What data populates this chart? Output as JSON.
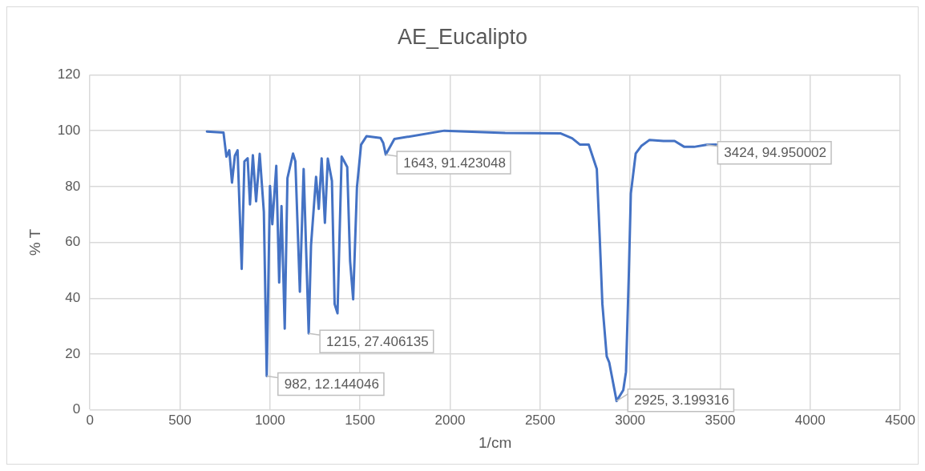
{
  "chart_data": {
    "type": "line",
    "title": "AE_Eucalipto",
    "xlabel": "1/cm",
    "ylabel": "% T",
    "xlim": [
      0,
      4500
    ],
    "xticks": [
      0,
      500,
      1000,
      1500,
      2000,
      2500,
      3000,
      3500,
      4000,
      4500
    ],
    "ylim": [
      0,
      120
    ],
    "yticks": [
      0,
      20,
      40,
      60,
      80,
      100,
      120
    ],
    "grid": true,
    "marker": "none",
    "series": [
      {
        "color": "#4472c4",
        "x": [
          650,
          742,
          758,
          774,
          789,
          805,
          820,
          843,
          858,
          876,
          889,
          905,
          923,
          943,
          966,
          982,
          1000,
          1013,
          1035,
          1051,
          1064,
          1082,
          1097,
          1128,
          1141,
          1166,
          1187,
          1215,
          1228,
          1256,
          1271,
          1287,
          1305,
          1321,
          1344,
          1359,
          1375,
          1398,
          1429,
          1445,
          1462,
          1483,
          1506,
          1536,
          1614,
          1629,
          1643,
          1691,
          1968,
          2306,
          2615,
          2678,
          2722,
          2770,
          2815,
          2831,
          2846,
          2870,
          2884,
          2925,
          2962,
          2977,
          2993,
          3004,
          3031,
          3062,
          3108,
          3185,
          3247,
          3301,
          3355,
          3424,
          3478
        ],
        "values": [
          99.7,
          99.3,
          90.7,
          93,
          81.4,
          91,
          93,
          50.5,
          89,
          90.1,
          73.6,
          91.2,
          74.7,
          91.7,
          70.9,
          12.144046,
          80.2,
          66.5,
          87.4,
          45.6,
          73,
          29.1,
          83,
          91.8,
          89,
          42.3,
          86.3,
          27.406135,
          59,
          83.5,
          72,
          90.1,
          67,
          90,
          82,
          37.9,
          34.6,
          90.7,
          87,
          53.3,
          39.6,
          79.7,
          95,
          98,
          97.4,
          95.6,
          91.423048,
          97,
          100,
          99.2,
          99,
          97.3,
          95,
          95,
          86.3,
          62.1,
          37.9,
          19.2,
          17,
          3.199316,
          7.1,
          13.6,
          48.9,
          77.5,
          91.8,
          94.5,
          96.7,
          96.3,
          96.3,
          94.2,
          94.2,
          94.950002,
          95
        ],
        "value_labels": [
          null,
          null,
          null,
          null,
          null,
          null,
          null,
          null,
          null,
          null,
          null,
          null,
          null,
          null,
          null,
          "982, 12.144046",
          null,
          null,
          null,
          null,
          null,
          null,
          null,
          null,
          null,
          null,
          null,
          "1215, 27.406135",
          null,
          null,
          null,
          null,
          null,
          null,
          null,
          null,
          null,
          null,
          null,
          null,
          null,
          null,
          null,
          null,
          null,
          null,
          "1643, 91.423048",
          null,
          null,
          null,
          null,
          null,
          null,
          null,
          null,
          null,
          null,
          null,
          null,
          "2925, 3.199316",
          null,
          null,
          null,
          null,
          null,
          null,
          null,
          null,
          null,
          null,
          null,
          "3424, 94.950002",
          null
        ]
      }
    ]
  }
}
